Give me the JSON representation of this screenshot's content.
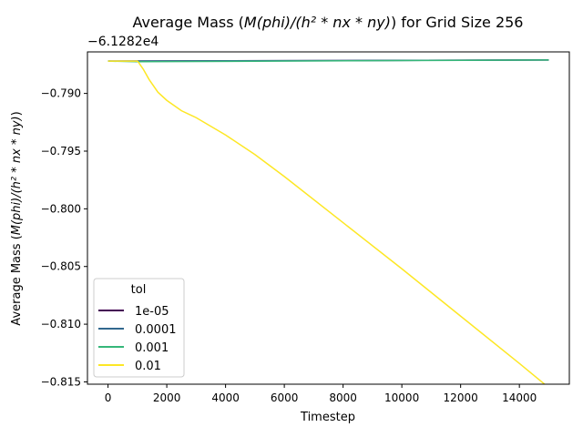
{
  "chart_data": {
    "type": "line",
    "title_prefix": "Average Mass (",
    "title_math": "M(phi)/(h² * nx * ny)",
    "title_suffix": ") for Grid Size 256",
    "xlabel": "Timestep",
    "ylabel_prefix": "Average Mass (",
    "ylabel_math": "M(phi)/(h² * nx * ny)",
    "ylabel_suffix": ")",
    "offset_label": "−6.1282e4",
    "xlim": [
      -700,
      15700
    ],
    "ylim": [
      -0.8152,
      -0.7864
    ],
    "xticks": [
      0,
      2000,
      4000,
      6000,
      8000,
      10000,
      12000,
      14000
    ],
    "xtick_labels": [
      "0",
      "2000",
      "4000",
      "6000",
      "8000",
      "10000",
      "12000",
      "14000"
    ],
    "yticks": [
      -0.79,
      -0.795,
      -0.8,
      -0.805,
      -0.81,
      -0.815
    ],
    "ytick_labels": [
      "−0.790",
      "−0.795",
      "−0.800",
      "−0.805",
      "−0.810",
      "−0.815"
    ],
    "grid": false,
    "legend": {
      "title": "tol",
      "placement": "lower-left"
    },
    "series": [
      {
        "name": "1e-05",
        "color": "#440154",
        "x": [
          0,
          15000
        ],
        "y": [
          -0.7872,
          -0.7871
        ]
      },
      {
        "name": "0.0001",
        "color": "#31688e",
        "x": [
          0,
          15000
        ],
        "y": [
          -0.7872,
          -0.7871
        ]
      },
      {
        "name": "0.001",
        "color": "#35b779",
        "x": [
          0,
          1000,
          15000
        ],
        "y": [
          -0.7872,
          -0.78725,
          -0.7871
        ]
      },
      {
        "name": "0.01",
        "color": "#fde725",
        "x": [
          0,
          1000,
          1050,
          1200,
          1400,
          1700,
          2000,
          2500,
          3000,
          4000,
          5000,
          6000,
          8000,
          10000,
          12000,
          14000,
          15000
        ],
        "y": [
          -0.7872,
          -0.7872,
          -0.78735,
          -0.7879,
          -0.7888,
          -0.7899,
          -0.7906,
          -0.7915,
          -0.7921,
          -0.7936,
          -0.7953,
          -0.7972,
          -0.8012,
          -0.8052,
          -0.8093,
          -0.8134,
          -0.8155
        ]
      }
    ]
  }
}
